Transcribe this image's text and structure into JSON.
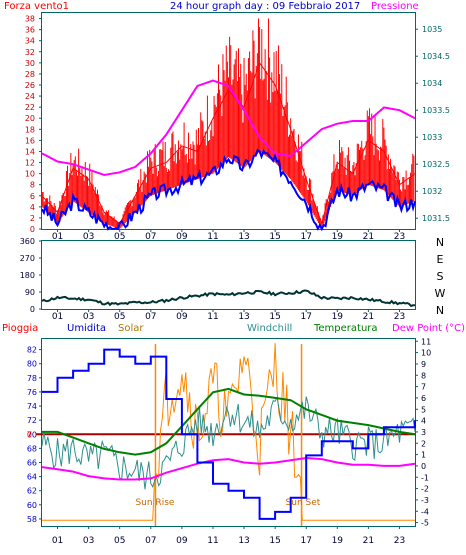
{
  "title": "24 hour graph day : 09 Febbraio 2017",
  "colors": {
    "wind": "#ff0000",
    "wind_avg": "#0000ff",
    "pressure": "#ff00ff",
    "wind_dir": "#003333",
    "humidity": "#0000ff",
    "solar": "#ff8800",
    "windchill": "#2f8f8f",
    "temperature": "#008000",
    "dewpoint": "#ff00ff",
    "rain": "#aa0000",
    "axis": "#006666"
  },
  "chart_data": [
    {
      "type": "line",
      "name": "wind-pressure",
      "title": "24 hour graph day : 09 Febbraio 2017",
      "ylabel": "Forza vento1",
      "y2label": "Pressione",
      "x_ticks": [
        "01",
        "03",
        "05",
        "07",
        "09",
        "11",
        "13",
        "15",
        "17",
        "19",
        "21",
        "23"
      ],
      "y_ticks": [
        0,
        2,
        4,
        6,
        8,
        10,
        12,
        14,
        16,
        18,
        20,
        22,
        24,
        26,
        28,
        30,
        32,
        34,
        36,
        38
      ],
      "y2_ticks": [
        1031.5,
        1032,
        1032.5,
        1033,
        1033.5,
        1034,
        1034.5,
        1035
      ],
      "ylim": [
        0,
        39
      ],
      "y2lim": [
        1031.3,
        1035.3
      ],
      "x": [
        0,
        1,
        2,
        3,
        4,
        5,
        6,
        7,
        8,
        9,
        10,
        11,
        12,
        13,
        14,
        15,
        16,
        17,
        18,
        19,
        20,
        21,
        22,
        23,
        24
      ],
      "series": [
        {
          "name": "gust",
          "values": [
            6,
            3,
            11,
            9,
            3,
            1,
            6,
            11,
            12,
            15,
            14,
            20,
            25,
            22,
            30,
            26,
            18,
            9,
            1,
            12,
            10,
            16,
            14,
            8,
            10
          ]
        },
        {
          "name": "average",
          "values": [
            4,
            1,
            5,
            3,
            1,
            0,
            3,
            6,
            7,
            8,
            9,
            10,
            13,
            11,
            14,
            12,
            9,
            5,
            0,
            7,
            6,
            8,
            7,
            4,
            5
          ]
        },
        {
          "name": "pressure",
          "values": [
            1032.7,
            1032.55,
            1032.5,
            1032.4,
            1032.3,
            1032.35,
            1032.45,
            1032.7,
            1033.05,
            1033.5,
            1033.95,
            1034.05,
            1033.95,
            1033.5,
            1033.0,
            1032.7,
            1032.65,
            1032.9,
            1033.15,
            1033.25,
            1033.3,
            1033.3,
            1033.55,
            1033.5,
            1033.35
          ]
        }
      ]
    },
    {
      "type": "line",
      "name": "wind-direction",
      "y_ticks": [
        0,
        90,
        180,
        270,
        360
      ],
      "ylim": [
        0,
        360
      ],
      "direction_labels": [
        "N",
        "W",
        "S",
        "E",
        "N"
      ],
      "x_ticks": [
        "01",
        "03",
        "05",
        "07",
        "09",
        "11",
        "13",
        "15",
        "17",
        "19",
        "21",
        "23"
      ],
      "x": [
        0,
        1,
        2,
        3,
        4,
        5,
        6,
        7,
        8,
        9,
        10,
        11,
        12,
        13,
        14,
        15,
        16,
        17,
        18,
        19,
        20,
        21,
        22,
        23,
        24
      ],
      "series": [
        {
          "name": "direction",
          "values": [
            40,
            60,
            55,
            50,
            30,
            25,
            35,
            35,
            45,
            60,
            70,
            80,
            75,
            85,
            90,
            80,
            85,
            95,
            60,
            55,
            60,
            50,
            40,
            30,
            20
          ]
        }
      ]
    },
    {
      "type": "line",
      "name": "temp-humidity",
      "labels": [
        "Pioggia",
        "Umidita",
        "Solar",
        "Windchill",
        "Temperatura",
        "Dew Point (°C)"
      ],
      "annotations": [
        "Sun Rise",
        "Sun Set"
      ],
      "y_ticks": [
        58,
        60,
        62,
        64,
        66,
        68,
        70,
        72,
        74,
        76,
        78,
        80,
        82
      ],
      "ylim": [
        57,
        83.5
      ],
      "y2_ticks": [
        -5,
        -4,
        -3,
        -2,
        -1,
        0,
        1,
        2,
        3,
        4,
        5,
        6,
        7,
        8,
        9,
        10,
        11
      ],
      "y2lim": [
        -5.3,
        11.2
      ],
      "rain_baseline": "0",
      "x_ticks": [
        "01",
        "03",
        "05",
        "07",
        "09",
        "11",
        "13",
        "15",
        "17",
        "19",
        "21",
        "23"
      ],
      "x": [
        0,
        1,
        2,
        3,
        4,
        5,
        6,
        7,
        8,
        9,
        10,
        11,
        12,
        13,
        14,
        15,
        16,
        17,
        18,
        19,
        20,
        21,
        22,
        23,
        24
      ],
      "series": [
        {
          "name": "humidity",
          "values": [
            76,
            78,
            79,
            80,
            82,
            81,
            80,
            81,
            75,
            70,
            66,
            63,
            62,
            61,
            58,
            59,
            61,
            67,
            69,
            69,
            68,
            70,
            71,
            71,
            72
          ]
        },
        {
          "name": "solar",
          "values": [
            -4.8,
            -4.8,
            -4.8,
            -4.8,
            -4.8,
            -4.8,
            -4.8,
            -4.8,
            6,
            9,
            3,
            7,
            4,
            10,
            2,
            9,
            3,
            -4.8,
            -4.8,
            -4.8,
            -4.8,
            -4.8,
            -4.8,
            -4.8,
            -4.8
          ]
        },
        {
          "name": "windchill",
          "values": [
            2,
            1,
            1.5,
            0.5,
            1,
            0,
            -0.5,
            -1,
            0,
            2,
            4,
            3,
            5,
            4,
            3,
            5,
            4,
            5,
            3,
            3,
            2,
            2,
            2,
            3,
            3
          ]
        },
        {
          "name": "temperature",
          "values": [
            3,
            3,
            2.5,
            2,
            1.5,
            1.2,
            1,
            1.2,
            2,
            3.5,
            5,
            6.5,
            6.8,
            6.3,
            6.2,
            6,
            5.8,
            5,
            4.5,
            4,
            3.8,
            3.6,
            3.3,
            3,
            2.8
          ]
        },
        {
          "name": "dewpoint",
          "values": [
            -0.1,
            -0.3,
            -0.5,
            -0.9,
            -1.1,
            -1.2,
            -1.2,
            -1.1,
            -0.6,
            -0.2,
            0.2,
            0.5,
            0.6,
            0.3,
            0.2,
            0.3,
            0.5,
            0.7,
            0.6,
            0.3,
            0.1,
            0.1,
            0.0,
            0.0,
            0.2
          ]
        }
      ]
    }
  ]
}
